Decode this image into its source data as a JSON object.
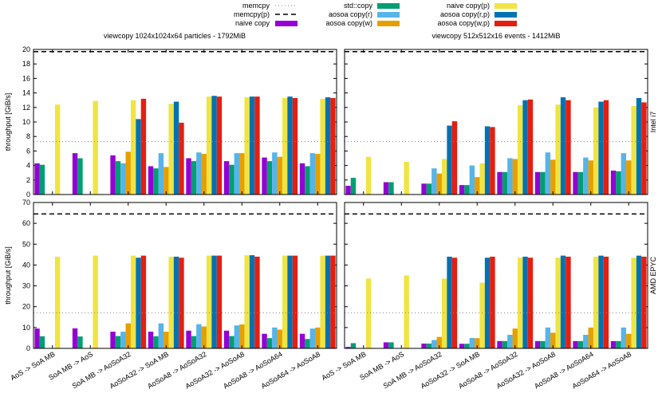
{
  "chart_data": {
    "type": "bar",
    "legend": {
      "placement": "top",
      "lines": [
        {
          "name": "memcpy",
          "style": "dotted",
          "color": "#888888"
        },
        {
          "name": "memcpy(p)",
          "style": "dashed",
          "color": "#000000"
        }
      ],
      "bars": [
        {
          "name": "naive copy",
          "color": "#9400d3"
        },
        {
          "name": "std::copy",
          "color": "#009e73"
        },
        {
          "name": "aosoa copy(r)",
          "color": "#56b4e9"
        },
        {
          "name": "aosoa copy(w)",
          "color": "#e69f00"
        },
        {
          "name": "naive copy(p)",
          "color": "#f0e442"
        },
        {
          "name": "aosoa copy(r,p)",
          "color": "#0072b2"
        },
        {
          "name": "aosoa copy(w,p)",
          "color": "#e51e10"
        }
      ]
    },
    "columns": [
      "viewcopy 1024x1024x64 particles - 1792MiB",
      "viewcopy 512x512x16 events - 1412MiB"
    ],
    "rows": [
      {
        "label": "Intel i7",
        "ylim": [
          0,
          20
        ],
        "ticks": [
          0,
          2,
          4,
          6,
          8,
          10,
          12,
          14,
          16,
          18,
          20
        ]
      },
      {
        "label": "AMD EPYC",
        "ylim": [
          0,
          70
        ],
        "ticks": [
          0,
          10,
          20,
          30,
          40,
          50,
          60,
          70
        ]
      }
    ],
    "ylabel": "throughput [GiB/s]",
    "categories": [
      "AoS -> SoA MB",
      "SoA MB -> AoS",
      "SoA MB -> AoSoA32",
      "AoSoA32 -> SoA MB",
      "AoSoA8 -> AoSoA32",
      "AoSoA32 -> AoSoA8",
      "AoSoA8 -> AoSoA64",
      "AoSoA64 -> AoSoA8"
    ],
    "panels": [
      {
        "row": 0,
        "col": 0,
        "memcpy": 7.3,
        "memcpy_p": 19.7,
        "values": [
          [
            4.3,
            4.1,
            null,
            null,
            12.4,
            null,
            null
          ],
          [
            5.7,
            5.0,
            null,
            null,
            12.9,
            null,
            null
          ],
          [
            5.4,
            4.6,
            4.3,
            5.9,
            13.0,
            10.4,
            13.2
          ],
          [
            3.9,
            3.6,
            5.7,
            3.8,
            12.5,
            12.8,
            9.9
          ],
          [
            5.0,
            4.6,
            5.8,
            5.6,
            13.5,
            13.6,
            13.5
          ],
          [
            4.6,
            4.1,
            5.7,
            5.7,
            13.4,
            13.5,
            13.5
          ],
          [
            5.1,
            4.6,
            5.8,
            5.2,
            13.3,
            13.5,
            13.3
          ],
          [
            4.3,
            3.9,
            5.7,
            5.6,
            13.2,
            13.4,
            13.3
          ]
        ]
      },
      {
        "row": 0,
        "col": 1,
        "memcpy": 7.3,
        "memcpy_p": 19.7,
        "values": [
          [
            1.2,
            2.3,
            null,
            null,
            5.2,
            null,
            null
          ],
          [
            1.7,
            1.7,
            null,
            null,
            4.5,
            null,
            null
          ],
          [
            1.5,
            1.5,
            3.6,
            2.9,
            4.9,
            9.5,
            10.1
          ],
          [
            1.3,
            1.3,
            4.0,
            2.4,
            4.3,
            9.4,
            9.3
          ],
          [
            3.1,
            3.1,
            5.0,
            4.9,
            12.3,
            13.0,
            13.1
          ],
          [
            3.1,
            3.1,
            5.8,
            4.8,
            12.4,
            13.4,
            13.0
          ],
          [
            3.1,
            3.1,
            5.1,
            4.7,
            12.0,
            12.8,
            13.0
          ],
          [
            3.3,
            3.2,
            5.7,
            4.7,
            12.2,
            13.3,
            12.7
          ]
        ]
      },
      {
        "row": 1,
        "col": 0,
        "memcpy": 17.0,
        "memcpy_p": 64.5,
        "values": [
          [
            9.5,
            5.8,
            null,
            null,
            44.0,
            null,
            null
          ],
          [
            9.6,
            5.7,
            null,
            null,
            44.5,
            null,
            null
          ],
          [
            8.0,
            5.9,
            8.0,
            12.0,
            44.5,
            43.5,
            44.5
          ],
          [
            8.0,
            5.8,
            12.0,
            8.0,
            44.0,
            44.0,
            43.5
          ],
          [
            8.5,
            5.9,
            11.6,
            10.5,
            44.5,
            44.5,
            44.5
          ],
          [
            8.5,
            5.9,
            11.0,
            11.5,
            44.7,
            44.7,
            44.0
          ],
          [
            7.0,
            4.9,
            10.0,
            9.0,
            44.5,
            44.5,
            44.5
          ],
          [
            7.0,
            4.5,
            9.5,
            10.0,
            44.5,
            44.5,
            44.5
          ]
        ]
      },
      {
        "row": 1,
        "col": 1,
        "memcpy": 17.0,
        "memcpy_p": 64.5,
        "values": [
          [
            0.7,
            2.5,
            null,
            null,
            33.5,
            null,
            null
          ],
          [
            2.9,
            2.9,
            null,
            null,
            35.0,
            null,
            null
          ],
          [
            2.3,
            2.3,
            4.0,
            5.5,
            33.5,
            44.0,
            43.5
          ],
          [
            2.2,
            2.2,
            5.0,
            4.9,
            31.5,
            43.5,
            44.0
          ],
          [
            3.5,
            3.5,
            6.5,
            9.5,
            43.5,
            44.0,
            43.5
          ],
          [
            3.5,
            3.5,
            10.0,
            7.5,
            43.5,
            44.5,
            44.0
          ],
          [
            3.5,
            3.5,
            6.5,
            10.0,
            44.0,
            44.5,
            44.0
          ],
          [
            3.5,
            3.5,
            10.0,
            7.0,
            43.5,
            44.5,
            44.0
          ]
        ]
      }
    ]
  }
}
